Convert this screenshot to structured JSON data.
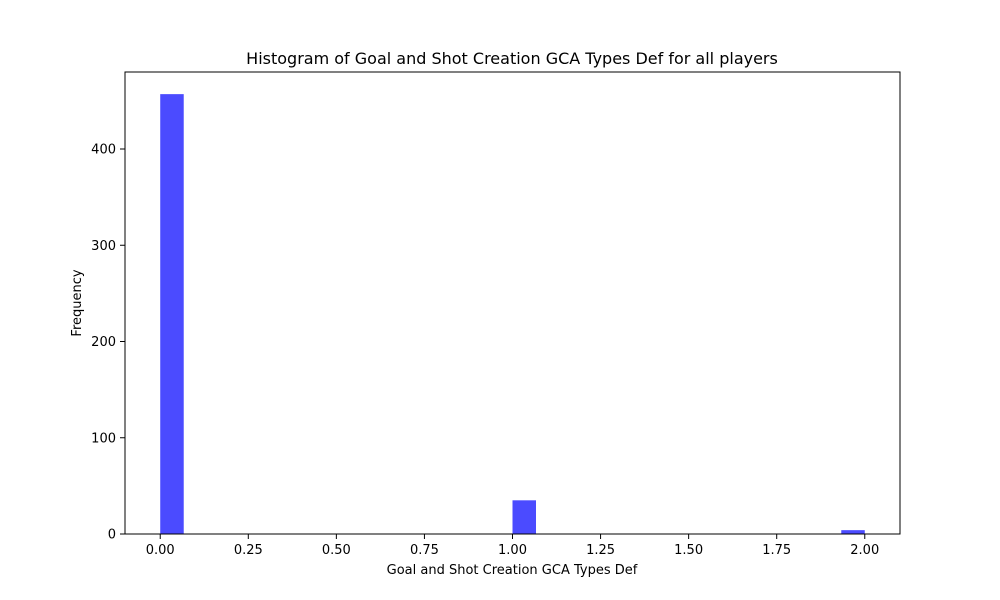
{
  "chart_data": {
    "type": "bar",
    "title": "Histogram of Goal and Shot Creation GCA Types Def for all players",
    "xlabel": "Goal and Shot Creation GCA Types Def",
    "ylabel": "Frequency",
    "bar_color": "#4b4bff",
    "xlim": [
      -0.1,
      2.1
    ],
    "ylim": [
      0,
      480
    ],
    "x_ticks": [
      "0.00",
      "0.25",
      "0.50",
      "0.75",
      "1.00",
      "1.25",
      "1.50",
      "1.75",
      "2.00"
    ],
    "y_ticks": [
      "0",
      "100",
      "200",
      "300",
      "400"
    ],
    "bins": [
      {
        "x0": 0.0,
        "x1": 0.0667,
        "value": 457
      },
      {
        "x0": 1.0,
        "x1": 1.0667,
        "value": 35
      },
      {
        "x0": 1.9333,
        "x1": 2.0,
        "value": 4
      }
    ],
    "grid": false,
    "legend": "none"
  }
}
